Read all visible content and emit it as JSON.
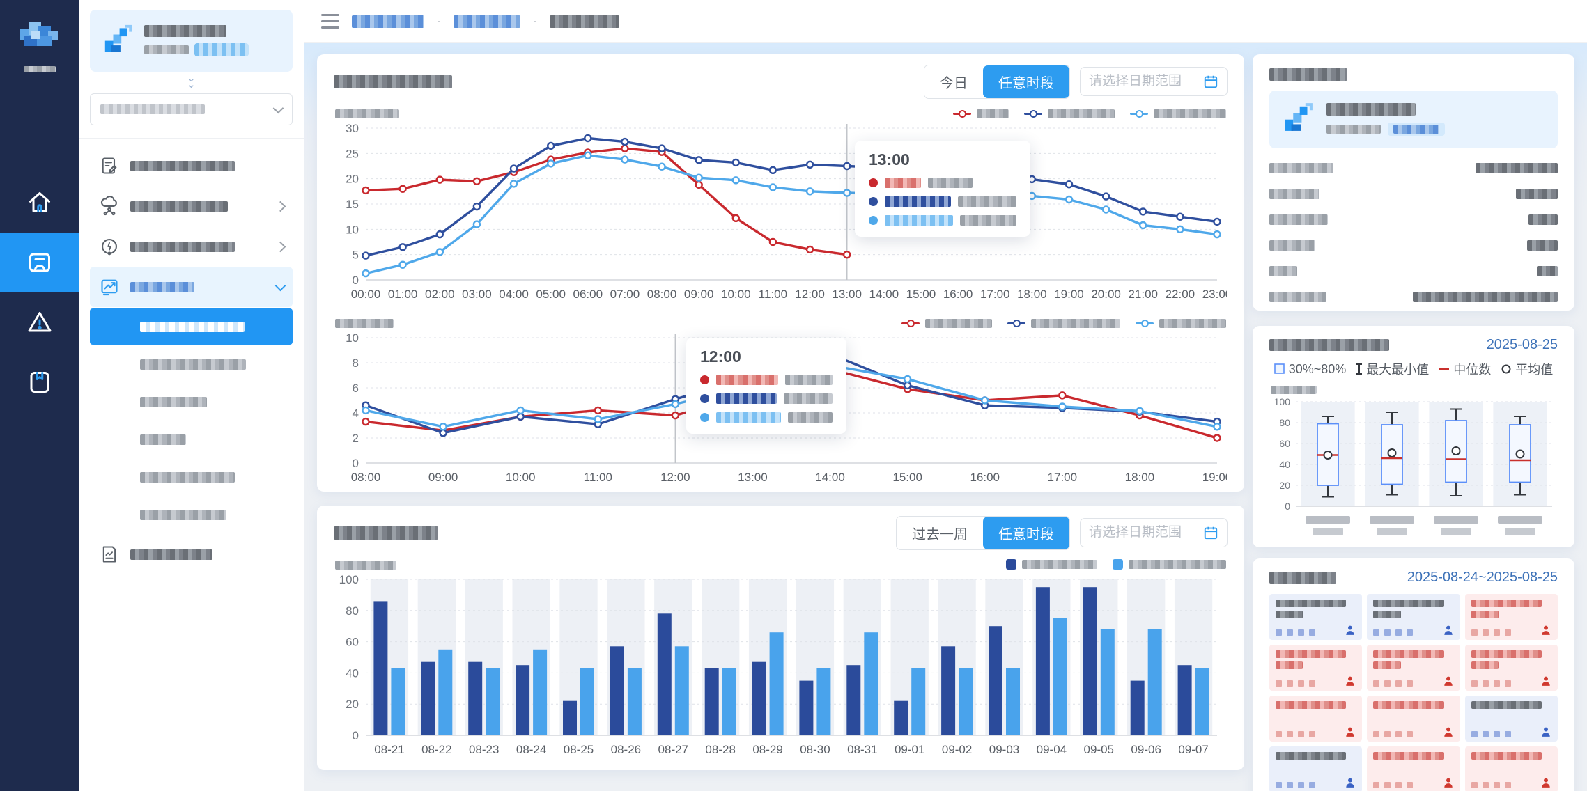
{
  "topbar": {
    "breadcrumb_note": "three breadcrumb items, text redacted/blurred",
    "separator": "·"
  },
  "controls": {
    "chart1": {
      "today": "今日",
      "any_period": "任意时段",
      "date_placeholder": "请选择日期范围"
    },
    "chart2": {
      "last_week": "过去一周",
      "any_period": "任意时段",
      "date_placeholder": "请选择日期范围"
    }
  },
  "colors": {
    "accent": "#2d9cf0",
    "rail_bg": "#1e2b4d",
    "rail_active": "#2196f3",
    "selected_submenu": "#2196f3",
    "highlight_bg": "#e8f3fe",
    "date_text": "#3d72b8",
    "tile_blue_bg": "#eaeffa",
    "tile_red_bg": "#fdecec"
  },
  "box_card": {
    "date": "2025-08-25",
    "legend_range": "30%~80%",
    "legend_minmax": "最大最小值",
    "legend_median": "中位数",
    "legend_mean": "平均值"
  },
  "alarm_card": {
    "date_range": "2025-08-24~2025-08-25",
    "tiles": [
      {
        "tone": "blue",
        "lines": 2
      },
      {
        "tone": "blue",
        "lines": 2
      },
      {
        "tone": "red",
        "lines": 2
      },
      {
        "tone": "red",
        "lines": 2
      },
      {
        "tone": "red",
        "lines": 2
      },
      {
        "tone": "red",
        "lines": 2
      },
      {
        "tone": "red",
        "lines": 1
      },
      {
        "tone": "red",
        "lines": 1
      },
      {
        "tone": "blue",
        "lines": 1
      },
      {
        "tone": "blue",
        "lines": 1
      },
      {
        "tone": "red",
        "lines": 1
      },
      {
        "tone": "red",
        "lines": 1
      }
    ]
  },
  "chart_data": [
    {
      "id": "hourly-line-chart",
      "type": "line",
      "x": [
        "00:00",
        "01:00",
        "02:00",
        "03:00",
        "04:00",
        "05:00",
        "06:00",
        "07:00",
        "08:00",
        "09:00",
        "10:00",
        "11:00",
        "12:00",
        "13:00",
        "14:00",
        "15:00",
        "16:00",
        "17:00",
        "18:00",
        "19:00",
        "20:00",
        "21:00",
        "22:00",
        "23:00"
      ],
      "ylim": [
        0,
        30
      ],
      "ystep": 5,
      "yticks": [
        0,
        5,
        10,
        15,
        20,
        25,
        30
      ],
      "grid": true,
      "legend_position": "top-right",
      "legend_note": "3 legend labels blurred",
      "hover_index": 13,
      "tooltip_time": "13:00",
      "series": [
        {
          "name": "redacted-red",
          "color": "#c9292e",
          "values": [
            17.7,
            18,
            19.8,
            19.5,
            21.3,
            23.8,
            25.2,
            26,
            25.3,
            18.8,
            12.2,
            7.5,
            6,
            5,
            null,
            null,
            null,
            null,
            null,
            null,
            null,
            null,
            null,
            null
          ]
        },
        {
          "name": "redacted-dark-blue",
          "color": "#2f4f9e",
          "values": [
            4.8,
            6.5,
            9,
            14.5,
            22,
            26.5,
            28,
            27.3,
            26,
            23.7,
            23.2,
            21.7,
            22.8,
            22.5,
            22.2,
            21.8,
            21.2,
            20.3,
            19.9,
            18.9,
            16.5,
            13.5,
            12.5,
            11.5
          ]
        },
        {
          "name": "redacted-light-blue",
          "color": "#4fa8ea",
          "values": [
            1.3,
            3,
            5.5,
            11,
            19,
            23,
            24.6,
            23.8,
            22.4,
            20.2,
            19.7,
            18.3,
            17.5,
            17.2,
            17,
            16.9,
            16.8,
            16.8,
            16.6,
            15.9,
            13.9,
            10.8,
            10,
            9
          ]
        }
      ]
    },
    {
      "id": "daytime-line-chart",
      "type": "line",
      "x": [
        "08:00",
        "09:00",
        "10:00",
        "11:00",
        "12:00",
        "13:00",
        "14:00",
        "15:00",
        "16:00",
        "17:00",
        "18:00",
        "19:00"
      ],
      "ylim": [
        0,
        10
      ],
      "ystep": 2,
      "yticks": [
        0,
        2,
        4,
        6,
        8,
        10
      ],
      "grid": true,
      "legend_position": "top-right",
      "legend_note": "3 legend labels blurred",
      "hover_index": 4,
      "tooltip_time": "12:00",
      "series": [
        {
          "name": "redacted-red",
          "color": "#c9292e",
          "values": [
            3.3,
            2.6,
            3.7,
            4.2,
            3.8,
            5.6,
            7.5,
            5.9,
            5.0,
            5.4,
            3.8,
            2.0
          ]
        },
        {
          "name": "redacted-dark-blue",
          "color": "#2f4f9e",
          "values": [
            4.6,
            2.4,
            3.7,
            3.1,
            5.1,
            6.9,
            8.7,
            6.2,
            4.6,
            4.4,
            4.1,
            3.3
          ]
        },
        {
          "name": "redacted-light-blue",
          "color": "#4fa8ea",
          "values": [
            4.2,
            2.9,
            4.2,
            3.5,
            4.7,
            6.2,
            7.8,
            6.7,
            5.0,
            4.5,
            4.15,
            2.9
          ]
        }
      ]
    },
    {
      "id": "daily-bar-chart",
      "type": "bar",
      "categories": [
        "08-21",
        "08-22",
        "08-23",
        "08-24",
        "08-25",
        "08-26",
        "08-27",
        "08-28",
        "08-29",
        "08-30",
        "08-31",
        "09-01",
        "09-02",
        "09-03",
        "09-04",
        "09-05",
        "09-06",
        "09-07"
      ],
      "ylim": [
        0,
        100
      ],
      "ystep": 20,
      "yticks": [
        0,
        20,
        40,
        60,
        80,
        100
      ],
      "grid": true,
      "legend_position": "top-right",
      "legend_note": "2 legend labels blurred",
      "series": [
        {
          "name": "redacted-dark-blue",
          "color": "#2b4b9b",
          "values": [
            86,
            47,
            47,
            45,
            22,
            57,
            78,
            43,
            47,
            35,
            45,
            22,
            57,
            70,
            95,
            95,
            35,
            45
          ]
        },
        {
          "name": "redacted-light-blue",
          "color": "#49a3ec",
          "values": [
            43,
            55,
            43,
            55,
            43,
            43,
            57,
            43,
            66,
            43,
            66,
            43,
            43,
            43,
            75,
            68,
            68,
            43
          ]
        }
      ]
    },
    {
      "id": "box-plot",
      "type": "boxplot",
      "ylim": [
        0,
        100
      ],
      "ystep": 20,
      "yticks": [
        0,
        20,
        40,
        60,
        80,
        100
      ],
      "box_color": "#5b8ff9",
      "median_color": "#c9302c",
      "whisker_color": "#33373d",
      "categories_note": "4 x-axis labels blurred (two lines each)",
      "boxes": [
        {
          "min": 9,
          "q1": 20,
          "median": 49,
          "mean": 49,
          "q3": 79,
          "max": 86
        },
        {
          "min": 11,
          "q1": 21,
          "median": 46,
          "mean": 51,
          "q3": 78,
          "max": 90
        },
        {
          "min": 10,
          "q1": 23,
          "median": 45,
          "mean": 53,
          "q3": 82,
          "max": 93
        },
        {
          "min": 11,
          "q1": 23,
          "median": 44,
          "mean": 50,
          "q3": 78,
          "max": 86
        }
      ]
    }
  ]
}
